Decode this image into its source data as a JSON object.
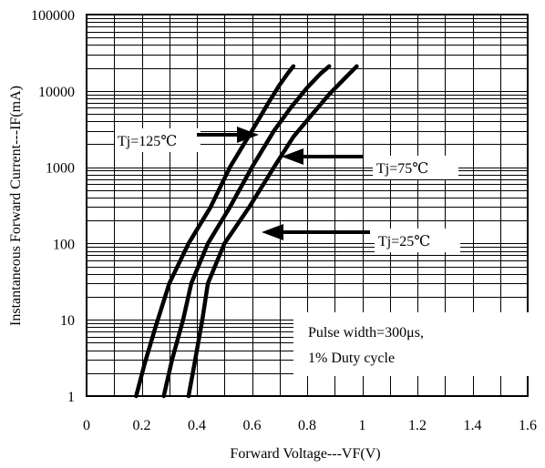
{
  "chart_data": {
    "type": "line",
    "xlabel": "Forward Voltage---VF(V)",
    "ylabel": "Instantaneous Forward Current---IF(mA)",
    "xlim": [
      0,
      1.6
    ],
    "ylim": [
      1,
      100000
    ],
    "y_scale": "log",
    "grid": true,
    "x_ticks": [
      "0",
      "0.2",
      "0.4",
      "0.6",
      "0.8",
      "1",
      "1.2",
      "1.4",
      "1.6"
    ],
    "y_ticks": [
      "1",
      "10",
      "100",
      "1000",
      "10000",
      "100000"
    ],
    "series": [
      {
        "name": "Tj=125℃",
        "x": [
          0.18,
          0.21,
          0.25,
          0.3,
          0.37,
          0.45,
          0.52,
          0.6,
          0.66,
          0.7,
          0.73,
          0.75
        ],
        "y": [
          1,
          2.6,
          8,
          30,
          100,
          300,
          1000,
          3000,
          7000,
          12000,
          17000,
          21000
        ]
      },
      {
        "name": "Tj=75℃",
        "x": [
          0.28,
          0.31,
          0.35,
          0.38,
          0.44,
          0.52,
          0.6,
          0.68,
          0.74,
          0.8,
          0.85,
          0.88
        ],
        "y": [
          1,
          3,
          10,
          30,
          100,
          300,
          1000,
          3000,
          6000,
          11000,
          17000,
          21000
        ]
      },
      {
        "name": "Tj=25℃",
        "x": [
          0.37,
          0.39,
          0.42,
          0.44,
          0.5,
          0.59,
          0.68,
          0.75,
          0.82,
          0.88,
          0.94,
          0.98
        ],
        "y": [
          1,
          2.5,
          10,
          30,
          100,
          300,
          1000,
          2500,
          5000,
          9000,
          15000,
          21000
        ]
      }
    ],
    "annotations": [
      {
        "text": "Tj=125℃",
        "target_series": 0
      },
      {
        "text": "Tj=75℃",
        "target_series": 1
      },
      {
        "text": "Tj=25℃",
        "target_series": 2
      }
    ],
    "note": [
      "Pulse width=300μs,",
      "1% Duty cycle"
    ]
  }
}
